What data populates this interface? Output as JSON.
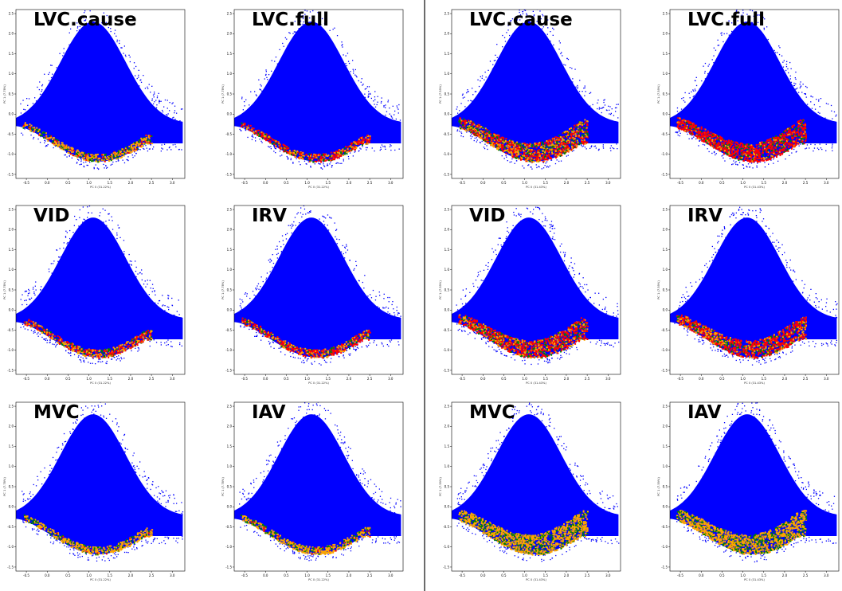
{
  "colors": {
    "background": "#0000ff",
    "red": "#ff0000",
    "orange": "#ffa500",
    "green": "#008000",
    "divider": "#6b6b6b"
  },
  "chart_data": [
    {
      "type": "scatter",
      "group": "left",
      "title": "LVC.cause",
      "xlabel": "PC 0 (31.22%)",
      "ylabel": "PC 1 (7.78%)",
      "xlim": [
        -0.75,
        3.3
      ],
      "ylim": [
        -1.6,
        2.6
      ],
      "xticks": [
        -0.5,
        0.0,
        0.5,
        1.0,
        1.5,
        2.0,
        2.5,
        3.0
      ],
      "yticks": [
        -1.5,
        -1.0,
        -0.5,
        0.0,
        0.5,
        1.0,
        1.5,
        2.0,
        2.5
      ],
      "highlight_level": 0.12,
      "series_mix": {
        "red": 0.15,
        "orange": 0.6,
        "green": 0.25
      }
    },
    {
      "type": "scatter",
      "group": "left",
      "title": "LVC.full",
      "xlabel": "PC 0 (31.22%)",
      "ylabel": "PC 1 (7.78%)",
      "xlim": [
        -0.75,
        3.3
      ],
      "ylim": [
        -1.6,
        2.6
      ],
      "xticks": [
        -0.5,
        0.0,
        0.5,
        1.0,
        1.5,
        2.0,
        2.5,
        3.0
      ],
      "yticks": [
        -1.5,
        -1.0,
        -0.5,
        0.0,
        0.5,
        1.0,
        1.5,
        2.0,
        2.5
      ],
      "highlight_level": 0.12,
      "series_mix": {
        "red": 0.55,
        "orange": 0.3,
        "green": 0.15
      }
    },
    {
      "type": "scatter",
      "group": "right",
      "title": "LVC.cause",
      "xlabel": "PC 0 (31.43%)",
      "ylabel": "PC 1 (7.59%)",
      "xlim": [
        -0.75,
        3.3
      ],
      "ylim": [
        -1.6,
        2.6
      ],
      "xticks": [
        -0.5,
        0.0,
        0.5,
        1.0,
        1.5,
        2.0,
        2.5,
        3.0
      ],
      "yticks": [
        -1.5,
        -1.0,
        -0.5,
        0.0,
        0.5,
        1.0,
        1.5,
        2.0,
        2.5
      ],
      "highlight_level": 0.55,
      "series_mix": {
        "red": 0.45,
        "orange": 0.35,
        "green": 0.2
      }
    },
    {
      "type": "scatter",
      "group": "right",
      "title": "LVC.full",
      "xlabel": "PC 0 (31.43%)",
      "ylabel": "PC 1 (7.59%)",
      "xlim": [
        -0.75,
        3.3
      ],
      "ylim": [
        -1.6,
        2.6
      ],
      "xticks": [
        -0.5,
        0.0,
        0.5,
        1.0,
        1.5,
        2.0,
        2.5,
        3.0
      ],
      "yticks": [
        -1.5,
        -1.0,
        -0.5,
        0.0,
        0.5,
        1.0,
        1.5,
        2.0,
        2.5
      ],
      "highlight_level": 0.55,
      "series_mix": {
        "red": 0.75,
        "orange": 0.1,
        "green": 0.15
      }
    },
    {
      "type": "scatter",
      "group": "left",
      "title": "VID",
      "xlabel": "PC 0 (31.22%)",
      "ylabel": "PC 1 (7.78%)",
      "xlim": [
        -0.75,
        3.3
      ],
      "ylim": [
        -1.6,
        2.6
      ],
      "xticks": [
        -0.5,
        0.0,
        0.5,
        1.0,
        1.5,
        2.0,
        2.5,
        3.0
      ],
      "yticks": [
        -1.5,
        -1.0,
        -0.5,
        0.0,
        0.5,
        1.0,
        1.5,
        2.0,
        2.5
      ],
      "highlight_level": 0.14,
      "series_mix": {
        "red": 0.45,
        "orange": 0.4,
        "green": 0.15
      }
    },
    {
      "type": "scatter",
      "group": "left",
      "title": "IRV",
      "xlabel": "PC 0 (31.22%)",
      "ylabel": "PC 1 (7.78%)",
      "xlim": [
        -0.75,
        3.3
      ],
      "ylim": [
        -1.6,
        2.6
      ],
      "xticks": [
        -0.5,
        0.0,
        0.5,
        1.0,
        1.5,
        2.0,
        2.5,
        3.0
      ],
      "yticks": [
        -1.5,
        -1.0,
        -0.5,
        0.0,
        0.5,
        1.0,
        1.5,
        2.0,
        2.5
      ],
      "highlight_level": 0.14,
      "series_mix": {
        "red": 0.5,
        "orange": 0.35,
        "green": 0.15
      }
    },
    {
      "type": "scatter",
      "group": "right",
      "title": "VID",
      "xlabel": "PC 0 (31.43%)",
      "ylabel": "PC 1 (7.59%)",
      "xlim": [
        -0.75,
        3.3
      ],
      "ylim": [
        -1.6,
        2.6
      ],
      "xticks": [
        -0.5,
        0.0,
        0.5,
        1.0,
        1.5,
        2.0,
        2.5,
        3.0
      ],
      "yticks": [
        -1.5,
        -1.0,
        -0.5,
        0.0,
        0.5,
        1.0,
        1.5,
        2.0,
        2.5
      ],
      "highlight_level": 0.5,
      "series_mix": {
        "red": 0.55,
        "orange": 0.3,
        "green": 0.15
      }
    },
    {
      "type": "scatter",
      "group": "right",
      "title": "IRV",
      "xlabel": "PC 0 (31.43%)",
      "ylabel": "PC 1 (7.59%)",
      "xlim": [
        -0.75,
        3.3
      ],
      "ylim": [
        -1.6,
        2.6
      ],
      "xticks": [
        -0.5,
        0.0,
        0.5,
        1.0,
        1.5,
        2.0,
        2.5,
        3.0
      ],
      "yticks": [
        -1.5,
        -1.0,
        -0.5,
        0.0,
        0.5,
        1.0,
        1.5,
        2.0,
        2.5
      ],
      "highlight_level": 0.5,
      "series_mix": {
        "red": 0.6,
        "orange": 0.28,
        "green": 0.12
      }
    },
    {
      "type": "scatter",
      "group": "left",
      "title": "MVC",
      "xlabel": "PC 0 (31.22%)",
      "ylabel": "PC 1 (7.78%)",
      "xlim": [
        -0.75,
        3.3
      ],
      "ylim": [
        -1.6,
        2.6
      ],
      "xticks": [
        -0.5,
        0.0,
        0.5,
        1.0,
        1.5,
        2.0,
        2.5,
        3.0
      ],
      "yticks": [
        -1.5,
        -1.0,
        -0.5,
        0.0,
        0.5,
        1.0,
        1.5,
        2.0,
        2.5
      ],
      "highlight_level": 0.12,
      "series_mix": {
        "red": 0.05,
        "orange": 0.7,
        "green": 0.25
      }
    },
    {
      "type": "scatter",
      "group": "left",
      "title": "IAV",
      "xlabel": "PC 0 (31.22%)",
      "ylabel": "PC 1 (7.78%)",
      "xlim": [
        -0.75,
        3.3
      ],
      "ylim": [
        -1.6,
        2.6
      ],
      "xticks": [
        -0.5,
        0.0,
        0.5,
        1.0,
        1.5,
        2.0,
        2.5,
        3.0
      ],
      "yticks": [
        -1.5,
        -1.0,
        -0.5,
        0.0,
        0.5,
        1.0,
        1.5,
        2.0,
        2.5
      ],
      "highlight_level": 0.12,
      "series_mix": {
        "red": 0.05,
        "orange": 0.7,
        "green": 0.25
      }
    },
    {
      "type": "scatter",
      "group": "right",
      "title": "MVC",
      "xlabel": "PC 0 (31.43%)",
      "ylabel": "PC 1 (7.59%)",
      "xlim": [
        -0.75,
        3.3
      ],
      "ylim": [
        -1.6,
        2.6
      ],
      "xticks": [
        -0.5,
        0.0,
        0.5,
        1.0,
        1.5,
        2.0,
        2.5,
        3.0
      ],
      "yticks": [
        -1.5,
        -1.0,
        -0.5,
        0.0,
        0.5,
        1.0,
        1.5,
        2.0,
        2.5
      ],
      "highlight_level": 0.6,
      "series_mix": {
        "red": 0.0,
        "orange": 0.72,
        "green": 0.28
      }
    },
    {
      "type": "scatter",
      "group": "right",
      "title": "IAV",
      "xlabel": "PC 0 (31.43%)",
      "ylabel": "PC 1 (7.59%)",
      "xlim": [
        -0.75,
        3.3
      ],
      "ylim": [
        -1.6,
        2.6
      ],
      "xticks": [
        -0.5,
        0.0,
        0.5,
        1.0,
        1.5,
        2.0,
        2.5,
        3.0
      ],
      "yticks": [
        -1.5,
        -1.0,
        -0.5,
        0.0,
        0.5,
        1.0,
        1.5,
        2.0,
        2.5
      ],
      "highlight_level": 0.6,
      "series_mix": {
        "red": 0.0,
        "orange": 0.72,
        "green": 0.28
      }
    }
  ]
}
